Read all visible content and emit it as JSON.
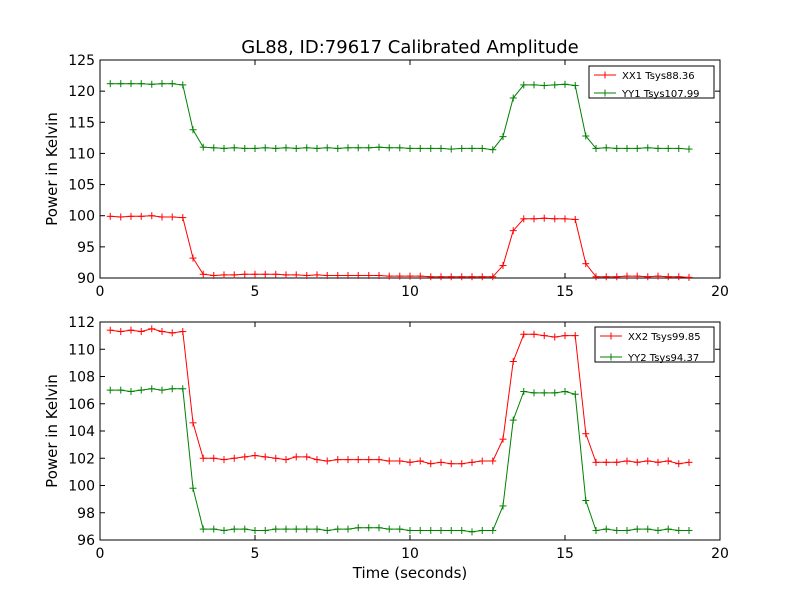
{
  "figure": {
    "title": "GL88, ID:79617 Calibrated Amplitude",
    "xlabel": "Time (seconds)"
  },
  "chart_data": [
    {
      "type": "line",
      "title": "GL88, ID:79617 Calibrated Amplitude",
      "xlabel": "",
      "ylabel": "Power in Kelvin",
      "xlim": [
        0,
        20
      ],
      "ylim": [
        90,
        125
      ],
      "xticks": [
        "0",
        "5",
        "10",
        "15",
        "20"
      ],
      "yticks": [
        "90",
        "95",
        "100",
        "105",
        "110",
        "115",
        "120",
        "125"
      ],
      "grid": false,
      "legend_position": "top-right",
      "x": [
        0.33,
        0.67,
        1.0,
        1.33,
        1.67,
        2.0,
        2.33,
        2.67,
        3.0,
        3.33,
        3.67,
        4.0,
        4.33,
        4.67,
        5.0,
        5.33,
        5.67,
        6.0,
        6.33,
        6.67,
        7.0,
        7.33,
        7.67,
        8.0,
        8.33,
        8.67,
        9.0,
        9.33,
        9.67,
        10.0,
        10.33,
        10.67,
        11.0,
        11.33,
        11.67,
        12.0,
        12.33,
        12.67,
        13.0,
        13.33,
        13.67,
        14.0,
        14.33,
        14.67,
        15.0,
        15.33,
        15.67,
        16.0,
        16.33,
        16.67,
        17.0,
        17.33,
        17.67,
        18.0,
        18.33,
        18.67,
        19.0
      ],
      "series": [
        {
          "name": "XX1 Tsys88.36",
          "color": "#ff0000",
          "values": [
            99.9,
            99.8,
            99.9,
            99.9,
            100.0,
            99.8,
            99.8,
            99.7,
            93.2,
            90.6,
            90.4,
            90.5,
            90.5,
            90.6,
            90.6,
            90.6,
            90.6,
            90.5,
            90.5,
            90.4,
            90.5,
            90.4,
            90.4,
            90.4,
            90.4,
            90.4,
            90.4,
            90.3,
            90.3,
            90.3,
            90.3,
            90.2,
            90.2,
            90.2,
            90.2,
            90.2,
            90.2,
            90.2,
            92.0,
            97.6,
            99.5,
            99.5,
            99.6,
            99.5,
            99.5,
            99.4,
            92.3,
            90.2,
            90.2,
            90.2,
            90.3,
            90.3,
            90.2,
            90.3,
            90.2,
            90.2,
            90.1
          ]
        },
        {
          "name": "YY1 Tsys107.99",
          "color": "#008000",
          "values": [
            121.2,
            121.2,
            121.2,
            121.2,
            121.1,
            121.2,
            121.2,
            121.0,
            113.8,
            111.0,
            110.9,
            110.8,
            110.9,
            110.8,
            110.8,
            110.9,
            110.8,
            110.9,
            110.8,
            110.9,
            110.8,
            110.9,
            110.8,
            110.9,
            110.9,
            110.9,
            111.0,
            110.9,
            110.9,
            110.8,
            110.8,
            110.8,
            110.8,
            110.7,
            110.8,
            110.8,
            110.8,
            110.6,
            112.7,
            118.9,
            121.0,
            121.0,
            120.9,
            121.0,
            121.1,
            120.9,
            112.8,
            110.8,
            110.9,
            110.8,
            110.8,
            110.8,
            110.9,
            110.8,
            110.8,
            110.8,
            110.7
          ]
        }
      ]
    },
    {
      "type": "line",
      "title": "",
      "xlabel": "Time (seconds)",
      "ylabel": "Power in Kelvin",
      "xlim": [
        0,
        20
      ],
      "ylim": [
        96,
        112
      ],
      "xticks": [
        "0",
        "5",
        "10",
        "15",
        "20"
      ],
      "yticks": [
        "96",
        "98",
        "100",
        "102",
        "104",
        "106",
        "108",
        "110",
        "112"
      ],
      "grid": false,
      "legend_position": "top-right",
      "x": [
        0.33,
        0.67,
        1.0,
        1.33,
        1.67,
        2.0,
        2.33,
        2.67,
        3.0,
        3.33,
        3.67,
        4.0,
        4.33,
        4.67,
        5.0,
        5.33,
        5.67,
        6.0,
        6.33,
        6.67,
        7.0,
        7.33,
        7.67,
        8.0,
        8.33,
        8.67,
        9.0,
        9.33,
        9.67,
        10.0,
        10.33,
        10.67,
        11.0,
        11.33,
        11.67,
        12.0,
        12.33,
        12.67,
        13.0,
        13.33,
        13.67,
        14.0,
        14.33,
        14.67,
        15.0,
        15.33,
        15.67,
        16.0,
        16.33,
        16.67,
        17.0,
        17.33,
        17.67,
        18.0,
        18.33,
        18.67,
        19.0
      ],
      "series": [
        {
          "name": "XX2 Tsys99.85",
          "color": "#ff0000",
          "values": [
            111.4,
            111.3,
            111.4,
            111.3,
            111.5,
            111.3,
            111.2,
            111.3,
            104.6,
            102.0,
            102.0,
            101.9,
            102.0,
            102.1,
            102.2,
            102.1,
            102.0,
            101.9,
            102.1,
            102.1,
            101.9,
            101.8,
            101.9,
            101.9,
            101.9,
            101.9,
            101.9,
            101.8,
            101.8,
            101.7,
            101.8,
            101.6,
            101.7,
            101.6,
            101.6,
            101.7,
            101.8,
            101.8,
            103.4,
            109.1,
            111.1,
            111.1,
            111.0,
            110.9,
            111.0,
            111.0,
            103.8,
            101.7,
            101.7,
            101.7,
            101.8,
            101.7,
            101.8,
            101.7,
            101.8,
            101.6,
            101.7
          ]
        },
        {
          "name": "YY2 Tsys94.37",
          "color": "#008000",
          "values": [
            107.0,
            107.0,
            106.9,
            107.0,
            107.1,
            107.0,
            107.1,
            107.1,
            99.8,
            96.8,
            96.8,
            96.7,
            96.8,
            96.8,
            96.7,
            96.7,
            96.8,
            96.8,
            96.8,
            96.8,
            96.8,
            96.7,
            96.8,
            96.8,
            96.9,
            96.9,
            96.9,
            96.8,
            96.8,
            96.7,
            96.7,
            96.7,
            96.7,
            96.7,
            96.7,
            96.6,
            96.7,
            96.7,
            98.5,
            104.8,
            106.9,
            106.8,
            106.8,
            106.8,
            106.9,
            106.7,
            98.9,
            96.7,
            96.8,
            96.7,
            96.7,
            96.8,
            96.8,
            96.7,
            96.8,
            96.7,
            96.7
          ]
        }
      ]
    }
  ]
}
